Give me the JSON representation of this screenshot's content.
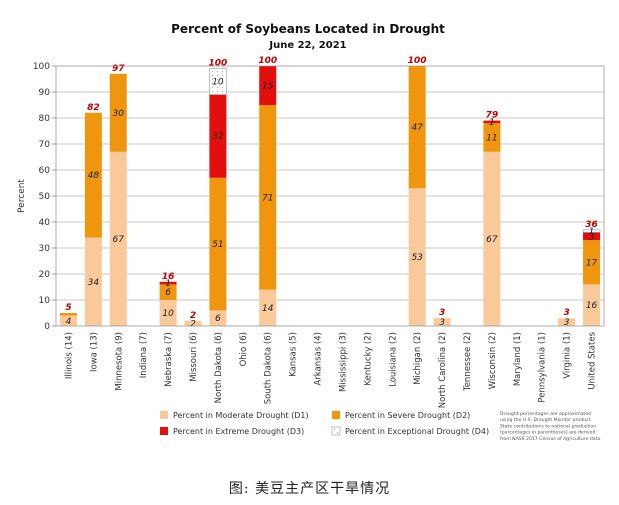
{
  "caption": "图: 美豆主产区干旱情况",
  "chart_data": {
    "type": "bar",
    "stacked": true,
    "title": "Percent of Soybeans Located in Drought",
    "subtitle": "June 22, 2021",
    "ylabel": "Percent",
    "xlabel": "",
    "ylim": [
      0,
      100
    ],
    "yticks": [
      0,
      10,
      20,
      30,
      40,
      50,
      60,
      70,
      80,
      90,
      100
    ],
    "grid": true,
    "legend_position": "bottom",
    "categories": [
      "Illinois (14)",
      "Iowa (13)",
      "Minnesota (9)",
      "Indiana (7)",
      "Nebraska (7)",
      "Missouri (6)",
      "North Dakota (6)",
      "Ohio (6)",
      "South Dakota (6)",
      "Kansas (5)",
      "Arkansas (4)",
      "Mississippi (3)",
      "Kentucky (2)",
      "Louisiana (2)",
      "Michigan (2)",
      "North Carolina (2)",
      "Tennessee (2)",
      "Wisconsin (2)",
      "Maryland (1)",
      "Pennsylvania (1)",
      "Virginia (1)",
      "United States"
    ],
    "series": [
      {
        "name": "Percent in Moderate Drought (D1)",
        "color": "#f9c99a",
        "values": [
          4,
          34,
          67,
          0,
          10,
          2,
          6,
          0,
          14,
          0,
          0,
          0,
          0,
          0,
          53,
          3,
          0,
          67,
          0,
          0,
          3,
          16
        ]
      },
      {
        "name": "Percent in Severe Drought (D2)",
        "color": "#f0960e",
        "values": [
          1,
          48,
          30,
          0,
          6,
          0,
          51,
          0,
          71,
          0,
          0,
          0,
          0,
          0,
          47,
          0,
          0,
          11,
          0,
          0,
          0,
          17
        ]
      },
      {
        "name": "Percent in Extreme Drought (D3)",
        "color": "#e30e0e",
        "values": [
          0,
          0,
          0,
          0,
          1,
          0,
          32,
          0,
          15,
          0,
          0,
          0,
          0,
          0,
          0,
          0,
          0,
          1,
          0,
          0,
          0,
          3
        ]
      },
      {
        "name": "Percent in Exceptional Drought (D4)",
        "color": "#ffffff",
        "values": [
          0,
          0,
          0,
          0,
          0,
          0,
          10,
          0,
          0,
          0,
          0,
          0,
          0,
          0,
          0,
          0,
          0,
          0,
          0,
          0,
          0,
          1
        ]
      }
    ],
    "segment_labels": [
      [
        "4",
        "34",
        "67",
        "",
        "10",
        "2",
        "6",
        "",
        "14",
        "",
        "",
        "",
        "",
        "",
        "53",
        "3",
        "",
        "67",
        "",
        "",
        "3",
        "16"
      ],
      [
        "",
        "48",
        "30",
        "",
        "6",
        "",
        "51",
        "",
        "71",
        "",
        "",
        "",
        "",
        "",
        "47",
        "",
        "",
        "11",
        "",
        "",
        "",
        "17"
      ],
      [
        "",
        "",
        "",
        "",
        "1",
        "",
        "32",
        "",
        "15",
        "",
        "",
        "",
        "",
        "",
        "",
        "",
        "",
        "1",
        "",
        "",
        "",
        "3"
      ],
      [
        "",
        "",
        "",
        "",
        "",
        "",
        "10",
        "",
        "",
        "",
        "",
        "",
        "",
        "",
        "",
        "",
        "",
        "",
        "",
        "",
        "",
        "1"
      ]
    ],
    "totals": [
      5,
      82,
      97,
      null,
      16,
      2,
      100,
      null,
      100,
      null,
      null,
      null,
      null,
      null,
      100,
      3,
      null,
      79,
      null,
      null,
      3,
      36
    ],
    "note": [
      "Drought percentages are approximated",
      "using the U.S. Drought Monitor product.",
      "State contributions to national production",
      "(percentages in parentheses) are derived",
      "from NASS 2017 Census of Agriculture data."
    ]
  }
}
